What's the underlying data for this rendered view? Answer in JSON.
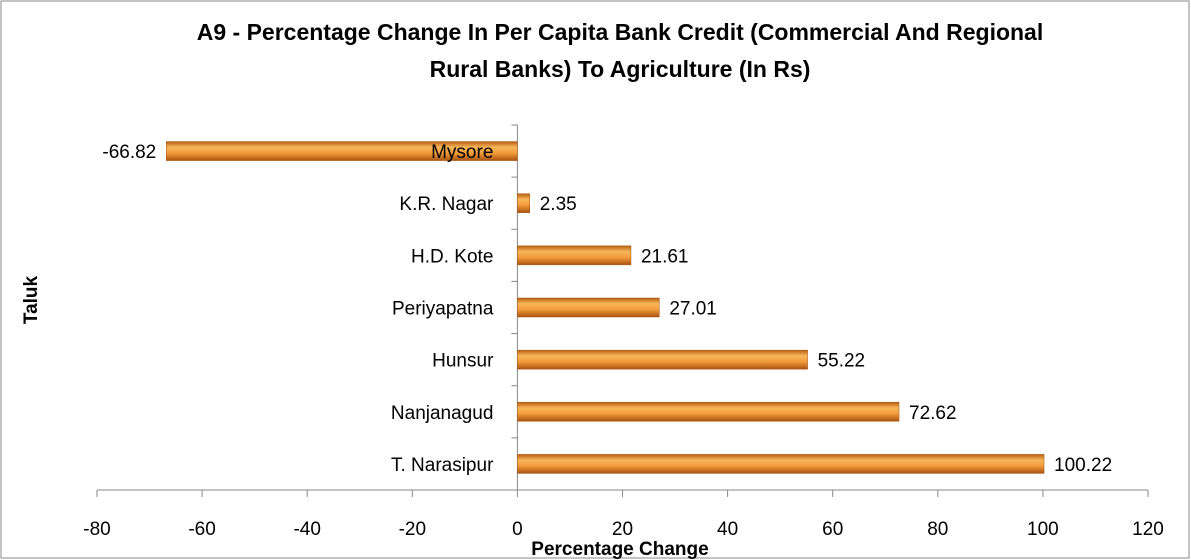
{
  "chart_data": {
    "type": "bar",
    "orientation": "horizontal",
    "title": "A9 - Percentage Change In Per Capita Bank Credit (Commercial And Regional Rural Banks) To Agriculture (In Rs)",
    "x_label": "Percentage Change",
    "y_label": "Taluk",
    "categories": [
      "T. Narasipur",
      "Nanjanagud",
      "Hunsur",
      "Periyapatna",
      "H.D. Kote",
      "K.R. Nagar",
      "Mysore"
    ],
    "values": [
      100.22,
      72.62,
      55.22,
      27.01,
      21.61,
      2.35,
      -66.82
    ],
    "color": "#f39c3c",
    "xlim": [
      -80,
      120
    ],
    "xticks": [
      -80,
      -60,
      -40,
      -20,
      0,
      20,
      40,
      60,
      80,
      100,
      120
    ]
  }
}
